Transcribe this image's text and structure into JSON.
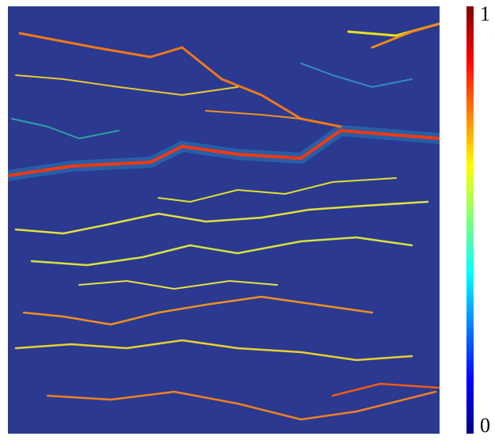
{
  "chart_data": {
    "type": "heatmap",
    "colormap": "jet",
    "colorbar": {
      "lim": [
        0,
        1
      ],
      "ticks": [
        0,
        1
      ]
    }
  }
}
